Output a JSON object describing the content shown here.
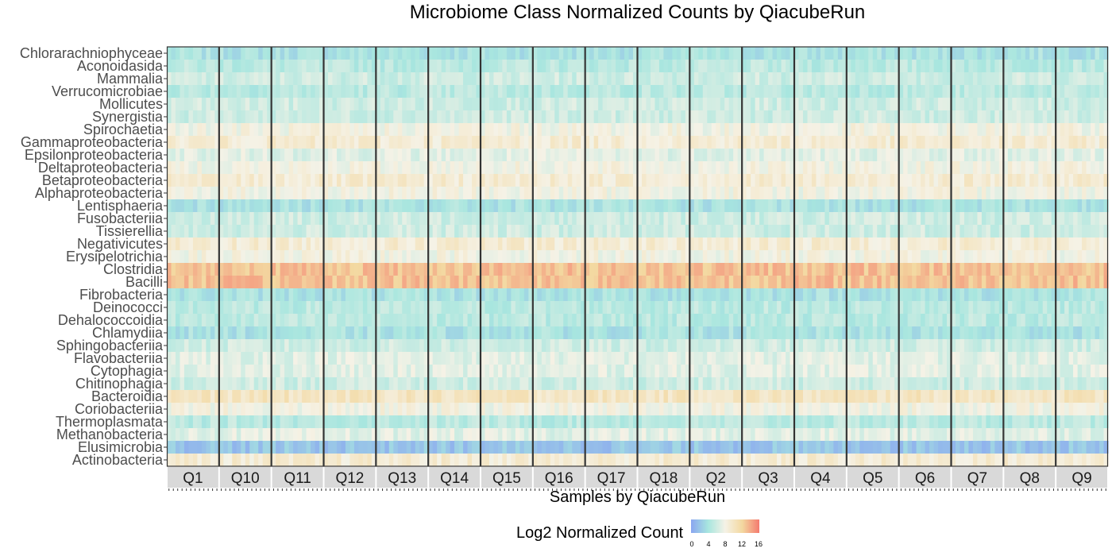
{
  "chart_data": {
    "type": "heatmap",
    "title": "Microbiome Class Normalized Counts by QiacubeRun",
    "xlabel": "Samples by QiacubeRun",
    "ylabel": "",
    "facets": [
      "Q1",
      "Q10",
      "Q11",
      "Q12",
      "Q13",
      "Q14",
      "Q15",
      "Q16",
      "Q17",
      "Q18",
      "Q2",
      "Q3",
      "Q4",
      "Q5",
      "Q6",
      "Q7",
      "Q8",
      "Q9"
    ],
    "rows": [
      "Chlorarachniophyceae",
      "Aconoidasida",
      "Mammalia",
      "Verrucomicrobiae",
      "Mollicutes",
      "Synergistia",
      "Spirochaetia",
      "Gammaproteobacteria",
      "Epsilonproteobacteria",
      "Deltaproteobacteria",
      "Betaproteobacteria",
      "Alphaproteobacteria",
      "Lentisphaeria",
      "Fusobacteriia",
      "Tissierellia",
      "Negativicutes",
      "Erysipelotrichia",
      "Clostridia",
      "Bacilli",
      "Fibrobacteria",
      "Deinococci",
      "Dehalococcoidia",
      "Chlamydiia",
      "Sphingobacteriia",
      "Flavobacteriia",
      "Cytophagia",
      "Chitinophagia",
      "Bacteroidia",
      "Coriobacteriia",
      "Thermoplasmata",
      "Methanobacteria",
      "Elusimicrobia",
      "Actinobacteria"
    ],
    "approx_log2_level_by_row": [
      4,
      5,
      6,
      5,
      6,
      6,
      8,
      9,
      7,
      8,
      9,
      8,
      4,
      6,
      6,
      9,
      8,
      13,
      13,
      4,
      5,
      5,
      4,
      6,
      7,
      7,
      6,
      10,
      8,
      5,
      7,
      2,
      9
    ],
    "legend_title": "Log2 Normalized Count",
    "legend_ticks": [
      "0",
      "4",
      "8",
      "12",
      "16"
    ],
    "scale_range": [
      0,
      16
    ],
    "colors": [
      "#8aa6f0",
      "#a8e6df",
      "#f5f2e6",
      "#f3d8a0",
      "#f47a6e"
    ]
  }
}
